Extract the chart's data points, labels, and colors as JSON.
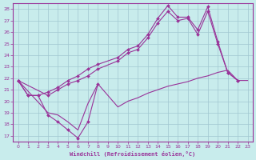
{
  "xlabel": "Windchill (Refroidissement éolien,°C)",
  "bg_color": "#c8ecec",
  "line_color": "#993399",
  "grid_color": "#a0c8d0",
  "spine_color": "#993399",
  "xlim": [
    -0.5,
    23.5
  ],
  "ylim": [
    16.5,
    28.5
  ],
  "yticks": [
    17,
    18,
    19,
    20,
    21,
    22,
    23,
    24,
    25,
    26,
    27,
    28
  ],
  "xticks": [
    0,
    1,
    2,
    3,
    4,
    5,
    6,
    7,
    8,
    9,
    10,
    11,
    12,
    13,
    14,
    15,
    16,
    17,
    18,
    19,
    20,
    21,
    22,
    23
  ],
  "lines": [
    {
      "x": [
        0,
        1,
        2,
        3,
        4,
        5,
        6,
        7,
        8
      ],
      "y": [
        21.8,
        20.5,
        20.5,
        18.8,
        18.2,
        17.5,
        16.8,
        18.2,
        21.5
      ],
      "marker": true
    },
    {
      "x": [
        0,
        1,
        2,
        3,
        4,
        5,
        6,
        7,
        8,
        10,
        11,
        12,
        13,
        14,
        15,
        16,
        17,
        18,
        19,
        20,
        21,
        22
      ],
      "y": [
        21.8,
        20.5,
        20.5,
        20.8,
        21.2,
        21.8,
        22.2,
        22.8,
        23.2,
        23.8,
        24.5,
        24.8,
        25.8,
        27.2,
        28.3,
        27.3,
        27.3,
        26.2,
        28.2,
        25.2,
        22.5,
        21.8
      ],
      "marker": true
    },
    {
      "x": [
        0,
        3,
        4,
        5,
        6,
        7,
        8,
        10,
        11,
        12,
        13,
        14,
        15,
        16,
        17,
        18,
        19,
        20,
        21,
        22
      ],
      "y": [
        21.8,
        20.5,
        21.0,
        21.5,
        21.8,
        22.2,
        22.8,
        23.5,
        24.2,
        24.5,
        25.5,
        26.8,
        27.8,
        27.0,
        27.2,
        25.8,
        27.8,
        25.0,
        22.5,
        21.8
      ],
      "marker": true
    },
    {
      "x": [
        0,
        3,
        4,
        5,
        6,
        7,
        8,
        10,
        11,
        12,
        13,
        14,
        15,
        16,
        17,
        18,
        19,
        20,
        21,
        22,
        23
      ],
      "y": [
        21.8,
        19.0,
        18.8,
        18.2,
        17.5,
        19.8,
        21.5,
        19.5,
        20.0,
        20.3,
        20.7,
        21.0,
        21.3,
        21.5,
        21.7,
        22.0,
        22.2,
        22.5,
        22.7,
        21.8,
        21.8
      ],
      "marker": false
    }
  ]
}
